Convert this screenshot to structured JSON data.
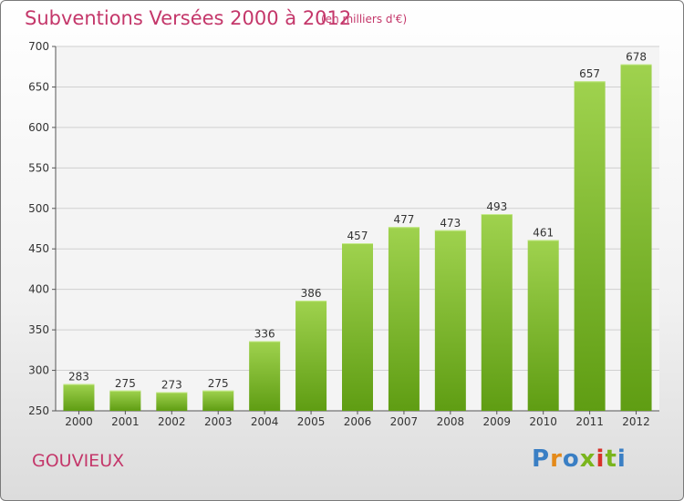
{
  "header": {
    "title": "Subventions Versées 2000 à 2012",
    "subtitle": "(en milliers d'€)"
  },
  "footer": {
    "commune": "GOUVIEUX",
    "logo_letters": [
      "P",
      "r",
      "o",
      "x",
      "i",
      "t",
      "i"
    ]
  },
  "colors": {
    "title": "#c4376a",
    "bar_top": "#9fd24e",
    "bar_bottom": "#5f9d13",
    "logo": [
      "#3a7fc4",
      "#e48a1a",
      "#3a7fc4",
      "#7ab51d",
      "#d8322a",
      "#7ab51d",
      "#3a7fc4"
    ]
  },
  "chart_data": {
    "type": "bar",
    "title": "Subventions Versées 2000 à 2012",
    "subtitle": "(en milliers d'€)",
    "categories": [
      "2000",
      "2001",
      "2002",
      "2003",
      "2004",
      "2005",
      "2006",
      "2007",
      "2008",
      "2009",
      "2010",
      "2011",
      "2012"
    ],
    "values": [
      283,
      275,
      273,
      275,
      336,
      386,
      457,
      477,
      473,
      493,
      461,
      657,
      678
    ],
    "ylim": [
      250,
      700
    ],
    "yticks": [
      250,
      300,
      350,
      400,
      450,
      500,
      550,
      600,
      650,
      700
    ],
    "grid": true,
    "xlabel": "",
    "ylabel": ""
  }
}
